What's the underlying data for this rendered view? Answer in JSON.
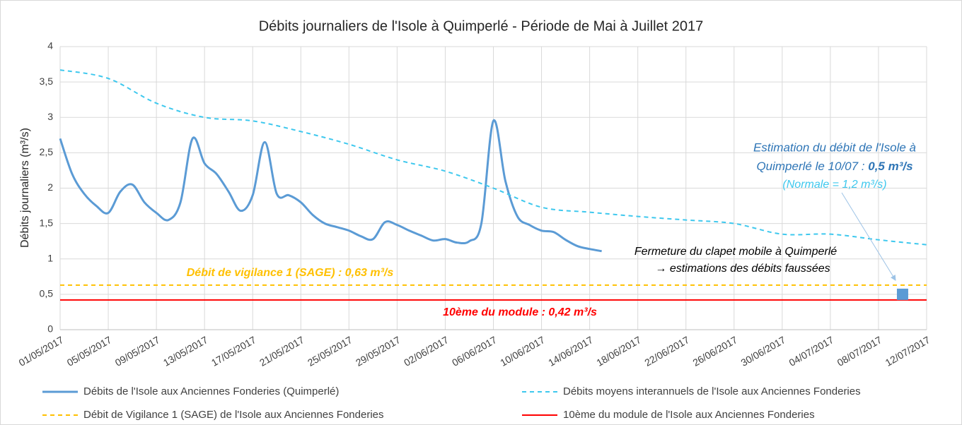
{
  "chart_data": {
    "type": "line",
    "title": "Débits journaliers de l'Isole à Quimperlé - Période de Mai à Juillet 2017",
    "y_label": "Débits journaliers (m³/s)",
    "categories": [
      "01/05/2017",
      "02/05/2017",
      "03/05/2017",
      "04/05/2017",
      "05/05/2017",
      "06/05/2017",
      "07/05/2017",
      "08/05/2017",
      "09/05/2017",
      "10/05/2017",
      "11/05/2017",
      "12/05/2017",
      "13/05/2017",
      "14/05/2017",
      "15/05/2017",
      "16/05/2017",
      "17/05/2017",
      "18/05/2017",
      "19/05/2017",
      "20/05/2017",
      "21/05/2017",
      "22/05/2017",
      "23/05/2017",
      "24/05/2017",
      "25/05/2017",
      "26/05/2017",
      "27/05/2017",
      "28/05/2017",
      "29/05/2017",
      "30/05/2017",
      "31/05/2017",
      "01/06/2017",
      "02/06/2017",
      "03/06/2017",
      "04/06/2017",
      "05/06/2017",
      "06/06/2017",
      "07/06/2017",
      "08/06/2017",
      "09/06/2017",
      "10/06/2017",
      "11/06/2017",
      "12/06/2017",
      "13/06/2017",
      "14/06/2017",
      "15/06/2017",
      "16/06/2017",
      "17/06/2017",
      "18/06/2017",
      "19/06/2017",
      "20/06/2017",
      "21/06/2017",
      "22/06/2017",
      "23/06/2017",
      "24/06/2017",
      "25/06/2017",
      "26/06/2017",
      "27/06/2017",
      "28/06/2017",
      "29/06/2017",
      "30/06/2017",
      "01/07/2017",
      "02/07/2017",
      "03/07/2017",
      "04/07/2017",
      "05/07/2017",
      "06/07/2017",
      "07/07/2017",
      "08/07/2017",
      "09/07/2017",
      "10/07/2017",
      "11/07/2017",
      "12/07/2017"
    ],
    "xticks": [
      "01/05/2017",
      "05/05/2017",
      "09/05/2017",
      "13/05/2017",
      "17/05/2017",
      "21/05/2017",
      "25/05/2017",
      "29/05/2017",
      "02/06/2017",
      "06/06/2017",
      "10/06/2017",
      "14/06/2017",
      "18/06/2017",
      "22/06/2017",
      "26/06/2017",
      "30/06/2017",
      "04/07/2017",
      "08/07/2017",
      "12/07/2017"
    ],
    "ylim": [
      0,
      4
    ],
    "yticks": [
      0,
      {
        "value": 0.5,
        "label": "0,5"
      },
      1,
      {
        "value": 1.5,
        "label": "1,5"
      },
      2,
      {
        "value": 2.5,
        "label": "2,5"
      },
      3,
      {
        "value": 3.5,
        "label": "3,5"
      },
      4
    ],
    "grid": true,
    "series": [
      {
        "name": "Débits de l'Isole aux Anciennes Fonderies (Quimperlé)",
        "color": "#5b9bd5",
        "style": "solid",
        "values": [
          2.7,
          2.2,
          1.92,
          1.75,
          1.65,
          1.95,
          2.05,
          1.8,
          1.65,
          1.55,
          1.8,
          2.7,
          2.35,
          2.2,
          1.95,
          1.68,
          1.9,
          2.65,
          1.92,
          1.9,
          1.8,
          1.62,
          1.5,
          1.45,
          1.4,
          1.32,
          1.28,
          1.52,
          1.48,
          1.4,
          1.33,
          1.26,
          1.28,
          1.23,
          1.25,
          1.5,
          2.95,
          2.1,
          1.6,
          1.48,
          1.4,
          1.38,
          1.27,
          1.18,
          1.14,
          1.11,
          null,
          null,
          null,
          null,
          null,
          null,
          null,
          null,
          null,
          null,
          null,
          null,
          null,
          null,
          null,
          null,
          null,
          null,
          null,
          null,
          null,
          null,
          null,
          null,
          null,
          null,
          null
        ]
      },
      {
        "name": "Débits moyens interannuels de l'Isole aux Anciennes Fonderies",
        "color": "#3ec8ee",
        "style": "dashed",
        "x": [
          "01/05/2017",
          "05/05/2017",
          "09/05/2017",
          "13/05/2017",
          "17/05/2017",
          "21/05/2017",
          "25/05/2017",
          "29/05/2017",
          "02/06/2017",
          "06/06/2017",
          "10/06/2017",
          "14/06/2017",
          "18/06/2017",
          "22/06/2017",
          "26/06/2017",
          "30/06/2017",
          "04/07/2017",
          "08/07/2017",
          "12/07/2017"
        ],
        "values": [
          3.67,
          3.55,
          3.2,
          3.0,
          2.95,
          2.8,
          2.62,
          2.4,
          2.24,
          2.0,
          1.73,
          1.66,
          1.6,
          1.55,
          1.5,
          1.35,
          1.35,
          1.27,
          1.2
        ]
      },
      {
        "name": "Débit de Vigilance 1 (SAGE) de l'Isole aux Anciennes Fonderies",
        "color": "#ffc000",
        "style": "dashed",
        "x": [
          "01/05/2017",
          "12/07/2017"
        ],
        "values": [
          0.63,
          0.63
        ]
      },
      {
        "name": "10ème du module de l'Isole aux Anciennes Fonderies",
        "color": "#ff0000",
        "style": "solid",
        "x": [
          "01/05/2017",
          "12/07/2017"
        ],
        "values": [
          0.42,
          0.42
        ]
      }
    ],
    "estimate_point": {
      "x": "10/07/2017",
      "value": 0.5,
      "color": "#5b9bd5"
    },
    "annotations": {
      "estimate": [
        "Estimation du débit de l'Isole à",
        "Quimperlé le 10/07 : ",
        "0,5 m³/s",
        "(Normale = 1,2 m³/s)"
      ],
      "closure": [
        "Fermeture du clapet mobile à Quimperlé",
        "→ estimations des débits faussées"
      ],
      "vigilance": "Débit de vigilance 1 (SAGE) : 0,63 m³/s",
      "module": "10ème du module : 0,42 m³/s"
    }
  }
}
